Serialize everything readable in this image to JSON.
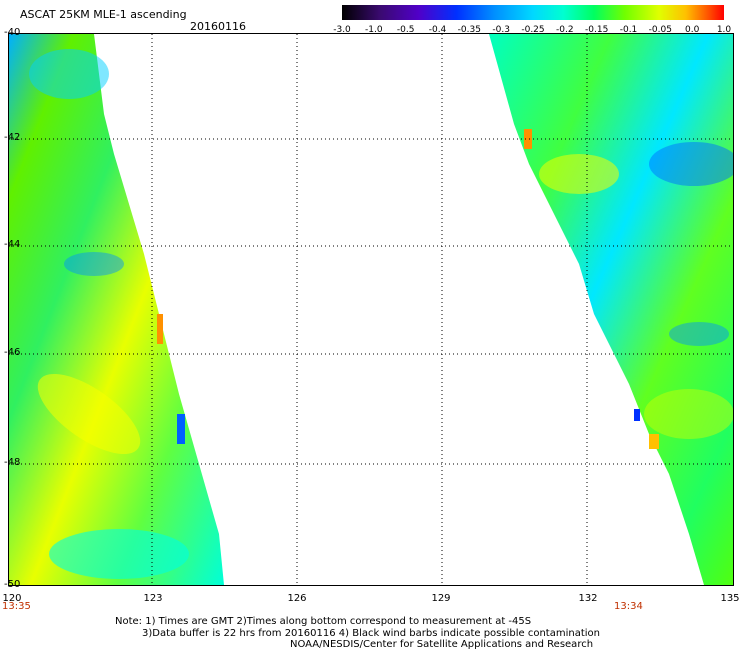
{
  "title": "ASCAT 25KM MLE-1 ascending",
  "date": "20160116",
  "colorbar": {
    "labels": [
      "-3.0",
      "-1.0",
      "-0.5",
      "-0.4",
      "-0.35",
      "-0.3",
      "-0.25",
      "-0.2",
      "-0.15",
      "-0.1",
      "-0.05",
      "0.0",
      "1.0"
    ],
    "colors": [
      "#000000",
      "#3a0a70",
      "#5000c8",
      "#0030ff",
      "#0090ff",
      "#00d8ff",
      "#00ffd0",
      "#00ff60",
      "#70ff00",
      "#e0ff00",
      "#ffc000",
      "#ff5000",
      "#ff0000"
    ]
  },
  "map": {
    "lat_ticks": [
      "-40",
      "-42",
      "-44",
      "-46",
      "-48",
      "-50"
    ],
    "lon_ticks": [
      "120",
      "123",
      "126",
      "129",
      "132",
      "135"
    ],
    "swath_times": [
      "13:35",
      "13:34"
    ]
  },
  "notes": {
    "line1": "Note: 1) Times are GMT 2)Times along bottom correspond to measurement at -45S",
    "line2": "3)Data buffer is 22 hrs from 20160116 4) Black wind barbs indicate possible contamination",
    "line3": "NOAA/NESDIS/Center for Satellite Applications and Research"
  }
}
